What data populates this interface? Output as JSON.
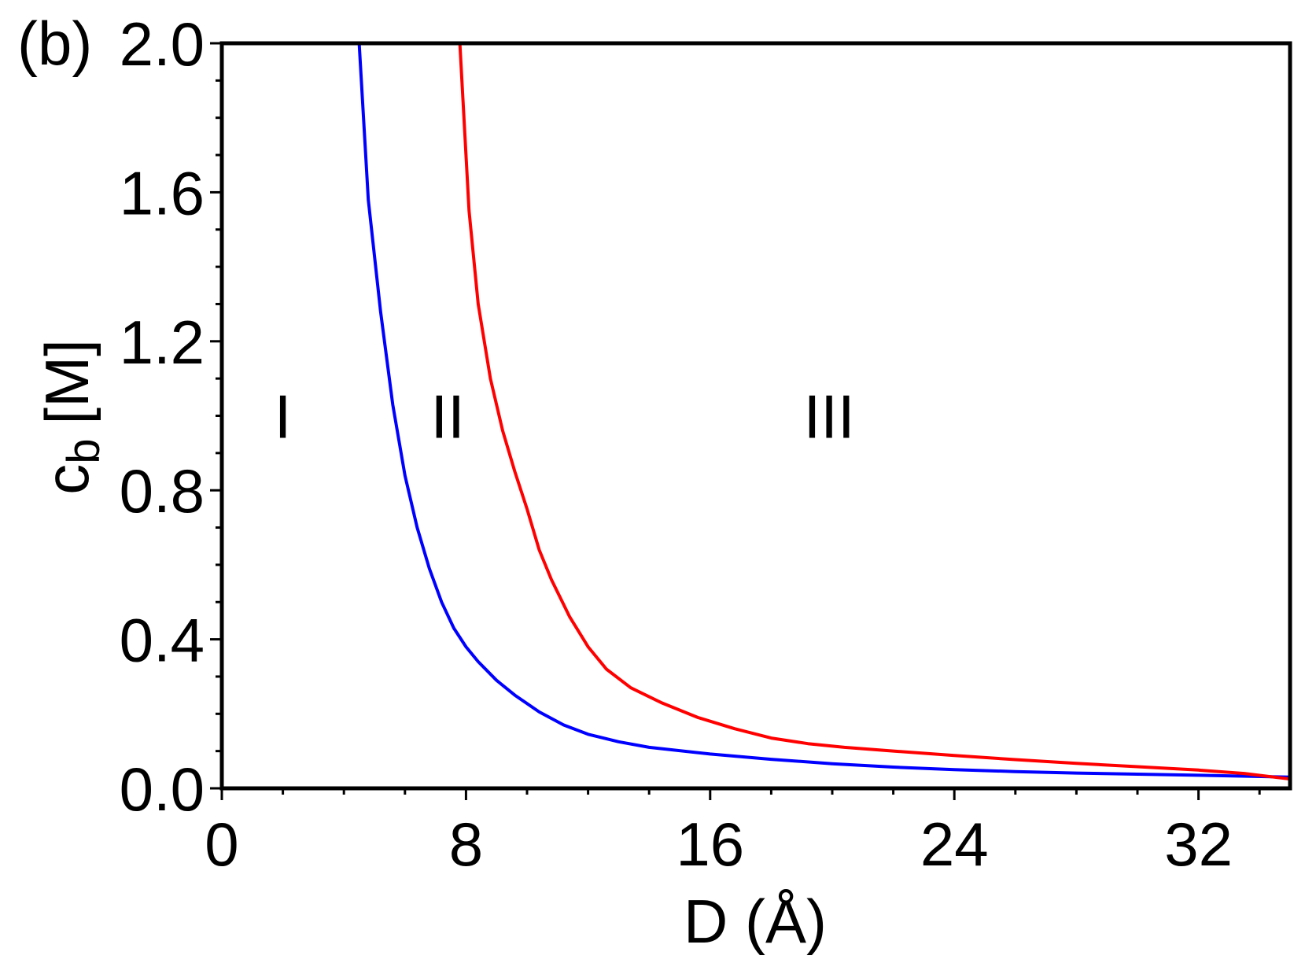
{
  "panel_label": "(b)",
  "chart_data": {
    "type": "line",
    "xlabel": "D (Å)",
    "ylabel": "c",
    "ylabel_subscript": "b",
    "ylabel_unit": "[M]",
    "xlim": [
      0,
      35
    ],
    "ylim": [
      0.0,
      2.0
    ],
    "x_ticks": [
      0,
      8,
      16,
      24,
      32
    ],
    "x_tick_labels": [
      "0",
      "8",
      "16",
      "24",
      "32"
    ],
    "y_ticks": [
      0.0,
      0.4,
      0.8,
      1.2,
      1.6,
      2.0
    ],
    "y_tick_labels": [
      "0.0",
      "0.4",
      "0.8",
      "1.2",
      "1.6",
      "2.0"
    ],
    "grid": false,
    "series": [
      {
        "color": "#0000ff",
        "x": [
          4.5,
          4.8,
          5.2,
          5.6,
          6.0,
          6.4,
          6.8,
          7.2,
          7.6,
          8.0,
          8.4,
          9.0,
          9.6,
          10.4,
          11.2,
          12.0,
          13.0,
          14.0,
          16.0,
          18.0,
          20.0,
          22.0,
          24.0,
          26.0,
          28.0,
          30.0,
          32.0,
          35.0
        ],
        "y": [
          2.0,
          1.58,
          1.28,
          1.03,
          0.84,
          0.7,
          0.59,
          0.5,
          0.43,
          0.38,
          0.34,
          0.29,
          0.25,
          0.205,
          0.17,
          0.145,
          0.125,
          0.11,
          0.092,
          0.078,
          0.066,
          0.057,
          0.05,
          0.045,
          0.041,
          0.038,
          0.035,
          0.03
        ]
      },
      {
        "color": "#ff0000",
        "x": [
          7.8,
          8.1,
          8.4,
          8.8,
          9.2,
          9.6,
          10.0,
          10.4,
          10.8,
          11.4,
          12.0,
          12.6,
          13.4,
          14.4,
          15.6,
          16.8,
          18.0,
          19.2,
          20.4,
          22.0,
          24.0,
          26.0,
          28.0,
          30.0,
          32.0,
          33.5,
          35.0
        ],
        "y": [
          2.0,
          1.55,
          1.3,
          1.1,
          0.96,
          0.85,
          0.75,
          0.64,
          0.56,
          0.46,
          0.38,
          0.32,
          0.27,
          0.23,
          0.19,
          0.16,
          0.135,
          0.12,
          0.11,
          0.1,
          0.088,
          0.077,
          0.067,
          0.058,
          0.049,
          0.04,
          0.025
        ]
      }
    ],
    "annotations": [
      {
        "text": "I",
        "x": 2.0,
        "y": 1.0
      },
      {
        "text": "II",
        "x": 7.4,
        "y": 1.0
      },
      {
        "text": "III",
        "x": 19.9,
        "y": 1.0
      }
    ]
  }
}
